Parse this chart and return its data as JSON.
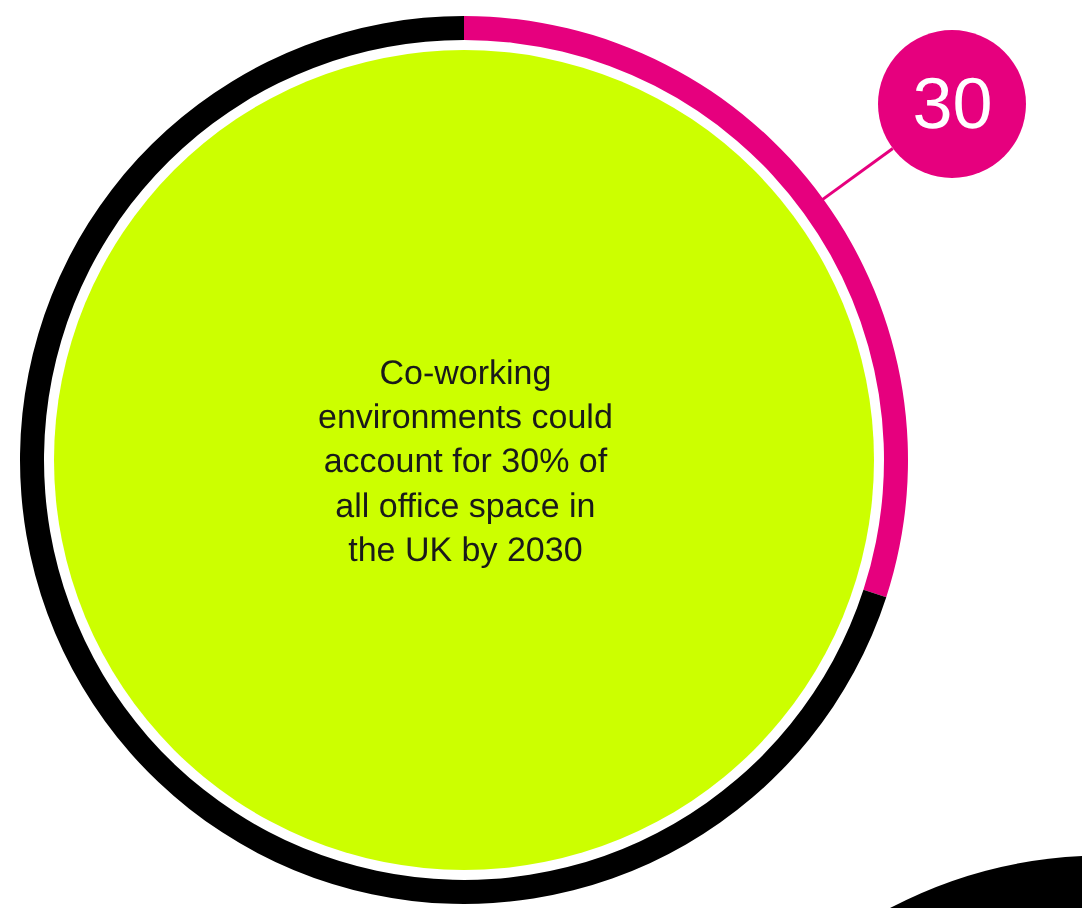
{
  "chart_data": {
    "type": "donut",
    "categories": [
      null,
      null
    ],
    "values": [
      30,
      70
    ],
    "colors": [
      "#e6007e",
      "#000000"
    ],
    "value_labels": [
      "30",
      null
    ],
    "annotations": [
      "Co-working\nenvironments could\naccount for 30% of\nall office space in\nthe UK by 2030"
    ],
    "legend": false
  }
}
